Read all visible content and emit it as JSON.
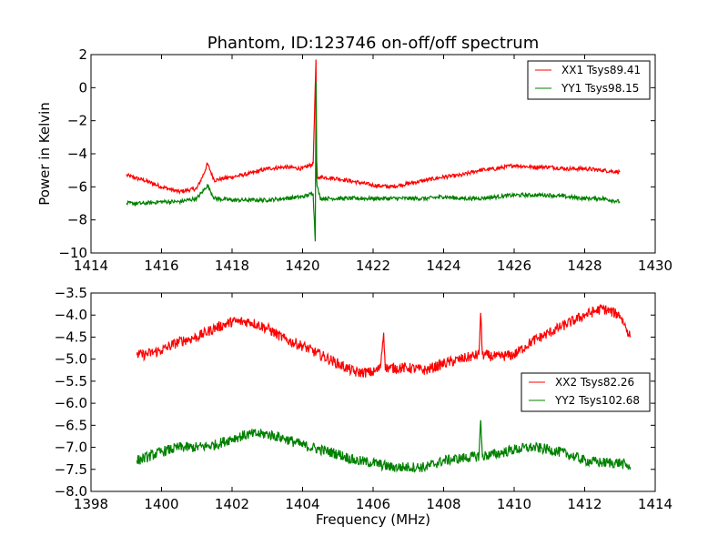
{
  "chart_data": [
    {
      "type": "line",
      "title": "Phantom, ID:123746 on-off/off spectrum",
      "xlabel": "",
      "ylabel": "Power in Kelvin",
      "xlim": [
        1414,
        1430
      ],
      "ylim": [
        -10,
        2
      ],
      "xticks": [
        1414,
        1416,
        1418,
        1420,
        1422,
        1424,
        1426,
        1428,
        1430
      ],
      "yticks": [
        -10,
        -8,
        -6,
        -4,
        -2,
        0,
        2
      ],
      "legend_position": "top-right",
      "series": [
        {
          "name": "XX1 Tsys89.41",
          "color": "#ff0000",
          "x": [
            1415.0,
            1415.5,
            1416.0,
            1416.5,
            1417.0,
            1417.2,
            1417.3,
            1417.5,
            1418.0,
            1418.5,
            1419.0,
            1419.5,
            1420.0,
            1420.3,
            1420.38,
            1420.4,
            1420.42,
            1420.5,
            1421.0,
            1421.5,
            1422.0,
            1422.5,
            1423.0,
            1423.5,
            1424.0,
            1424.5,
            1425.0,
            1425.5,
            1426.0,
            1426.5,
            1427.0,
            1427.5,
            1428.0,
            1428.5,
            1429.0
          ],
          "y": [
            -5.3,
            -5.6,
            -6.0,
            -6.3,
            -6.1,
            -5.2,
            -4.6,
            -5.6,
            -5.4,
            -5.2,
            -4.9,
            -4.8,
            -4.9,
            -4.6,
            1.7,
            -4.4,
            -5.5,
            -5.4,
            -5.5,
            -5.7,
            -5.9,
            -6.0,
            -5.8,
            -5.6,
            -5.4,
            -5.3,
            -5.0,
            -4.9,
            -4.7,
            -4.8,
            -4.8,
            -4.9,
            -4.9,
            -5.0,
            -5.1
          ]
        },
        {
          "name": "YY1 Tsys98.15",
          "color": "#008000",
          "x": [
            1415.0,
            1415.5,
            1416.0,
            1416.5,
            1417.0,
            1417.2,
            1417.3,
            1417.5,
            1418.0,
            1418.5,
            1419.0,
            1419.5,
            1420.0,
            1420.3,
            1420.36,
            1420.38,
            1420.4,
            1420.42,
            1420.5,
            1421.0,
            1421.5,
            1422.0,
            1422.5,
            1423.0,
            1423.5,
            1424.0,
            1424.5,
            1425.0,
            1425.5,
            1426.0,
            1426.5,
            1427.0,
            1427.5,
            1428.0,
            1428.5,
            1429.0
          ],
          "y": [
            -7.0,
            -7.0,
            -6.9,
            -6.9,
            -6.7,
            -6.2,
            -5.9,
            -6.7,
            -6.8,
            -6.8,
            -6.8,
            -6.7,
            -6.6,
            -6.4,
            -9.3,
            0.4,
            -5.6,
            -6.0,
            -6.7,
            -6.7,
            -6.7,
            -6.7,
            -6.7,
            -6.7,
            -6.7,
            -6.6,
            -6.7,
            -6.7,
            -6.6,
            -6.5,
            -6.5,
            -6.5,
            -6.6,
            -6.7,
            -6.7,
            -6.9
          ]
        }
      ]
    },
    {
      "type": "line",
      "title": "",
      "xlabel": "Frequency (MHz)",
      "ylabel": "",
      "xlim": [
        1398,
        1414
      ],
      "ylim": [
        -8.0,
        -3.5
      ],
      "xticks": [
        1398,
        1400,
        1402,
        1404,
        1406,
        1408,
        1410,
        1412,
        1414
      ],
      "yticks": [
        -8.0,
        -7.5,
        -7.0,
        -6.5,
        -6.0,
        -5.5,
        -5.0,
        -4.5,
        -4.0,
        -3.5
      ],
      "legend_position": "center-right",
      "series": [
        {
          "name": "XX2 Tsys82.26",
          "color": "#ff0000",
          "x": [
            1399.3,
            1399.5,
            1400.0,
            1400.5,
            1401.0,
            1401.5,
            1402.0,
            1402.5,
            1403.0,
            1403.5,
            1404.0,
            1404.5,
            1405.0,
            1405.5,
            1406.0,
            1406.2,
            1406.3,
            1406.35,
            1406.5,
            1407.0,
            1407.5,
            1408.0,
            1408.5,
            1409.0,
            1409.05,
            1409.1,
            1409.5,
            1410.0,
            1410.5,
            1411.0,
            1411.5,
            1412.0,
            1412.5,
            1413.0,
            1413.3
          ],
          "y": [
            -4.9,
            -4.9,
            -4.8,
            -4.6,
            -4.5,
            -4.3,
            -4.15,
            -4.15,
            -4.3,
            -4.55,
            -4.7,
            -4.9,
            -5.1,
            -5.3,
            -5.3,
            -5.2,
            -4.4,
            -5.2,
            -5.2,
            -5.2,
            -5.25,
            -5.1,
            -5.0,
            -4.9,
            -3.95,
            -4.9,
            -4.95,
            -4.9,
            -4.6,
            -4.4,
            -4.2,
            -4.0,
            -3.85,
            -4.0,
            -4.5
          ]
        },
        {
          "name": "YY2 Tsys102.68",
          "color": "#008000",
          "x": [
            1399.3,
            1399.5,
            1400.0,
            1400.5,
            1401.0,
            1401.5,
            1402.0,
            1402.5,
            1403.0,
            1403.5,
            1404.0,
            1404.5,
            1405.0,
            1405.5,
            1406.0,
            1406.5,
            1407.0,
            1407.5,
            1408.0,
            1408.5,
            1409.0,
            1409.05,
            1409.1,
            1409.5,
            1410.0,
            1410.5,
            1411.0,
            1411.5,
            1412.0,
            1412.5,
            1413.0,
            1413.3
          ],
          "y": [
            -7.3,
            -7.25,
            -7.1,
            -7.0,
            -7.0,
            -6.95,
            -6.8,
            -6.7,
            -6.7,
            -6.8,
            -6.95,
            -7.05,
            -7.15,
            -7.3,
            -7.35,
            -7.45,
            -7.45,
            -7.45,
            -7.3,
            -7.25,
            -7.2,
            -6.4,
            -7.2,
            -7.15,
            -7.05,
            -7.0,
            -7.05,
            -7.15,
            -7.3,
            -7.35,
            -7.35,
            -7.45
          ]
        }
      ]
    }
  ]
}
